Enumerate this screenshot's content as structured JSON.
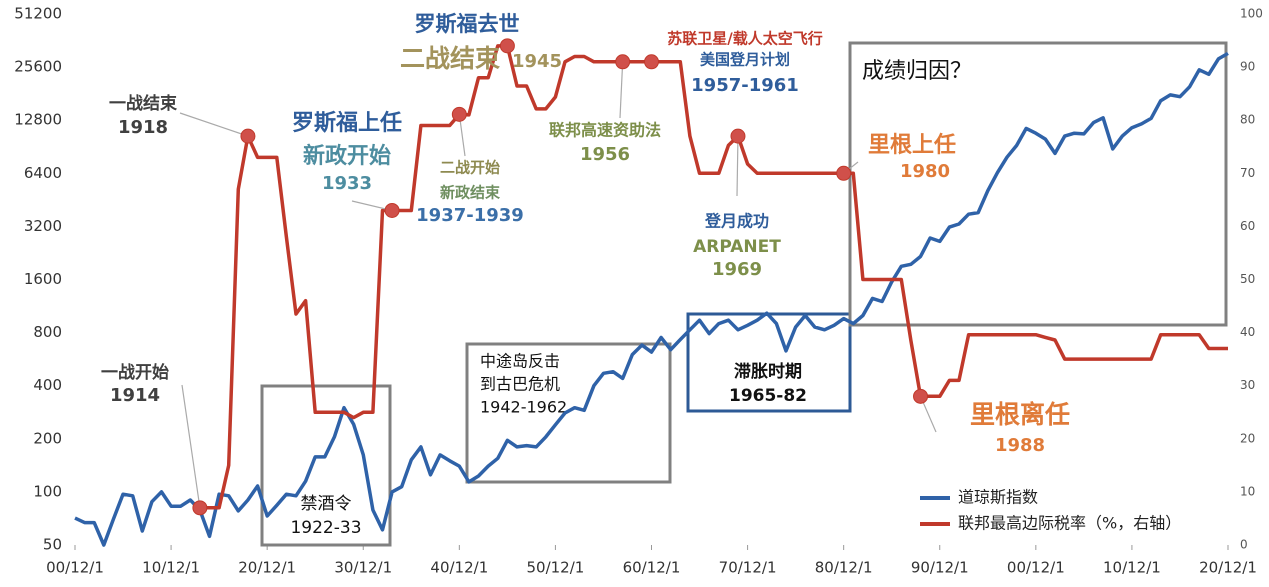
{
  "chart_data": {
    "type": "line",
    "x": [
      1900,
      1901,
      1902,
      1903,
      1904,
      1905,
      1906,
      1907,
      1908,
      1909,
      1910,
      1911,
      1912,
      1913,
      1914,
      1915,
      1916,
      1917,
      1918,
      1919,
      1920,
      1921,
      1922,
      1923,
      1924,
      1925,
      1926,
      1927,
      1928,
      1929,
      1930,
      1931,
      1932,
      1933,
      1934,
      1935,
      1936,
      1937,
      1938,
      1939,
      1940,
      1941,
      1942,
      1943,
      1944,
      1945,
      1946,
      1947,
      1948,
      1949,
      1950,
      1951,
      1952,
      1953,
      1954,
      1955,
      1956,
      1957,
      1958,
      1959,
      1960,
      1961,
      1962,
      1963,
      1964,
      1965,
      1966,
      1967,
      1968,
      1969,
      1970,
      1971,
      1972,
      1973,
      1974,
      1975,
      1976,
      1977,
      1978,
      1979,
      1980,
      1981,
      1982,
      1983,
      1984,
      1985,
      1986,
      1987,
      1988,
      1989,
      1990,
      1991,
      1992,
      1993,
      1994,
      1995,
      1996,
      1997,
      1998,
      1999,
      2000,
      2001,
      2002,
      2003,
      2004,
      2005,
      2006,
      2007,
      2008,
      2009,
      2010,
      2011,
      2012,
      2013,
      2014,
      2015,
      2016,
      2017,
      2018,
      2019,
      2020
    ],
    "series": [
      {
        "name": "道琼斯指数",
        "color": "#2f62a8",
        "values": [
          71,
          67,
          67,
          50,
          70,
          97,
          95,
          60,
          88,
          100,
          83,
          83,
          90,
          79,
          56,
          97,
          95,
          78,
          90,
          108,
          73,
          84,
          97,
          95,
          115,
          158,
          158,
          205,
          300,
          242,
          162,
          79,
          61,
          100,
          107,
          152,
          180,
          125,
          162,
          150,
          140,
          114,
          123,
          140,
          155,
          196,
          180,
          183,
          180,
          205,
          240,
          280,
          300,
          290,
          400,
          470,
          480,
          440,
          600,
          680,
          620,
          750,
          640,
          730,
          830,
          940,
          790,
          900,
          940,
          830,
          880,
          940,
          1030,
          900,
          630,
          860,
          1000,
          860,
          830,
          880,
          960,
          900,
          1000,
          1250,
          1200,
          1550,
          1900,
          1950,
          2160,
          2750,
          2630,
          3170,
          3300,
          3750,
          3830,
          5100,
          6450,
          7900,
          9200,
          11500,
          10800,
          10000,
          8300,
          10400,
          10800,
          10700,
          12400,
          13200,
          8800,
          10400,
          11600,
          12200,
          13100,
          16500,
          17800,
          17400,
          19800,
          24700,
          23300,
          28500,
          30600
        ]
      },
      {
        "name": "联邦最高边际税率（%，右轴）",
        "color": "#c0392b",
        "axis": "y2",
        "values": [
          null,
          null,
          null,
          null,
          null,
          null,
          null,
          null,
          null,
          null,
          null,
          null,
          null,
          7,
          7,
          7,
          15,
          67,
          77,
          73,
          73,
          73,
          58,
          43.5,
          46,
          25,
          25,
          25,
          25,
          24,
          25,
          25,
          63,
          63,
          63,
          63,
          79,
          79,
          79,
          79,
          81.1,
          81,
          88,
          88,
          94,
          94,
          86.45,
          86.45,
          82.13,
          82.13,
          84.36,
          91,
          92,
          92,
          91,
          91,
          91,
          91,
          91,
          91,
          91,
          91,
          91,
          91,
          77,
          70,
          70,
          70,
          75.25,
          77,
          71.75,
          70,
          70,
          70,
          70,
          70,
          70,
          70,
          70,
          70,
          70,
          70,
          50,
          50,
          50,
          50,
          50,
          38.5,
          28,
          28,
          28,
          31,
          31,
          39.6,
          39.6,
          39.6,
          39.6,
          39.6,
          39.6,
          39.6,
          39.6,
          39.1,
          38.6,
          35,
          35,
          35,
          35,
          35,
          35,
          35,
          35,
          35,
          35,
          39.6,
          39.6,
          39.6,
          39.6,
          39.6,
          37,
          37,
          37
        ]
      }
    ],
    "xlim": [
      1900,
      2020
    ],
    "xticks": [
      {
        "value": 1900,
        "label": "00/12/1"
      },
      {
        "value": 1910,
        "label": "10/12/1"
      },
      {
        "value": 1920,
        "label": "20/12/1"
      },
      {
        "value": 1930,
        "label": "30/12/1"
      },
      {
        "value": 1940,
        "label": "40/12/1"
      },
      {
        "value": 1950,
        "label": "50/12/1"
      },
      {
        "value": 1960,
        "label": "60/12/1"
      },
      {
        "value": 1970,
        "label": "70/12/1"
      },
      {
        "value": 1980,
        "label": "80/12/1"
      },
      {
        "value": 1990,
        "label": "90/12/1"
      },
      {
        "value": 2000,
        "label": "00/12/1"
      },
      {
        "value": 2010,
        "label": "10/12/1"
      },
      {
        "value": 2020,
        "label": "20/12/1"
      }
    ],
    "ylim": [
      50,
      51200
    ],
    "log_y": true,
    "yticks": [
      50,
      100,
      200,
      400,
      800,
      1600,
      3200,
      6400,
      12800,
      25600,
      51200
    ],
    "y2lim": [
      0,
      100
    ],
    "y2ticks": [
      0,
      10,
      20,
      30,
      40,
      50,
      60,
      70,
      80,
      90,
      100
    ],
    "legend": "lower right",
    "annotations": [
      {
        "lines": [
          "一战开始",
          "1914"
        ],
        "colors": [
          "#404040",
          "#404040"
        ],
        "x": 1913
      },
      {
        "lines": [
          "一战结束",
          "1918"
        ],
        "colors": [
          "#404040",
          "#404040"
        ],
        "x": 1918
      },
      {
        "lines": [
          "罗斯福上任",
          "新政开始",
          "1933"
        ],
        "colors": [
          "#2f5d9b",
          "#4d8da0",
          "#4d8da0"
        ],
        "x": 1933
      },
      {
        "lines": [
          "二战开始",
          "新政结束",
          "1937-1939"
        ],
        "colors": [
          "#8e8a50",
          "#6f8f60",
          "#3b6fa8"
        ],
        "x": 1940
      },
      {
        "lines": [
          "罗斯福去世",
          "二战结束",
          "1945"
        ],
        "colors": [
          "#2f5d9b",
          "#a3935c",
          "#a3935c"
        ],
        "x": 1945
      },
      {
        "lines": [
          "联邦高速资助法",
          "1956"
        ],
        "colors": [
          "#7d8f4a",
          "#7d8f4a"
        ],
        "x": 1957
      },
      {
        "lines": [
          "苏联卫星/载人太空飞行",
          "美国登月计划",
          "1957-1961"
        ],
        "colors": [
          "#c0392b",
          "#2f5d9b",
          "#2f5d9b"
        ],
        "x": 1960
      },
      {
        "lines": [
          "登月成功",
          "ARPANET",
          "1969"
        ],
        "colors": [
          "#2f5d9b",
          "#7d8f4a",
          "#7d8f4a"
        ],
        "x": 1969
      },
      {
        "lines": [
          "里根上任",
          "1980"
        ],
        "colors": [
          "#e07b39",
          "#e07b39"
        ],
        "x": 1980
      },
      {
        "lines": [
          "里根离任",
          "1988"
        ],
        "colors": [
          "#e07b39",
          "#e07b39"
        ],
        "x": 1988
      }
    ],
    "boxes": [
      {
        "lines": [
          "禁酒令",
          "1922-33"
        ],
        "color": "#808080"
      },
      {
        "lines": [
          "中途岛反击",
          "到古巴危机",
          "1942-1962"
        ],
        "color": "#808080"
      },
      {
        "lines": [
          "滞胀时期",
          "1965-82"
        ],
        "color": "#2d5a96"
      },
      {
        "lines": [
          "成绩归因？"
        ],
        "color": "#808080"
      }
    ]
  }
}
